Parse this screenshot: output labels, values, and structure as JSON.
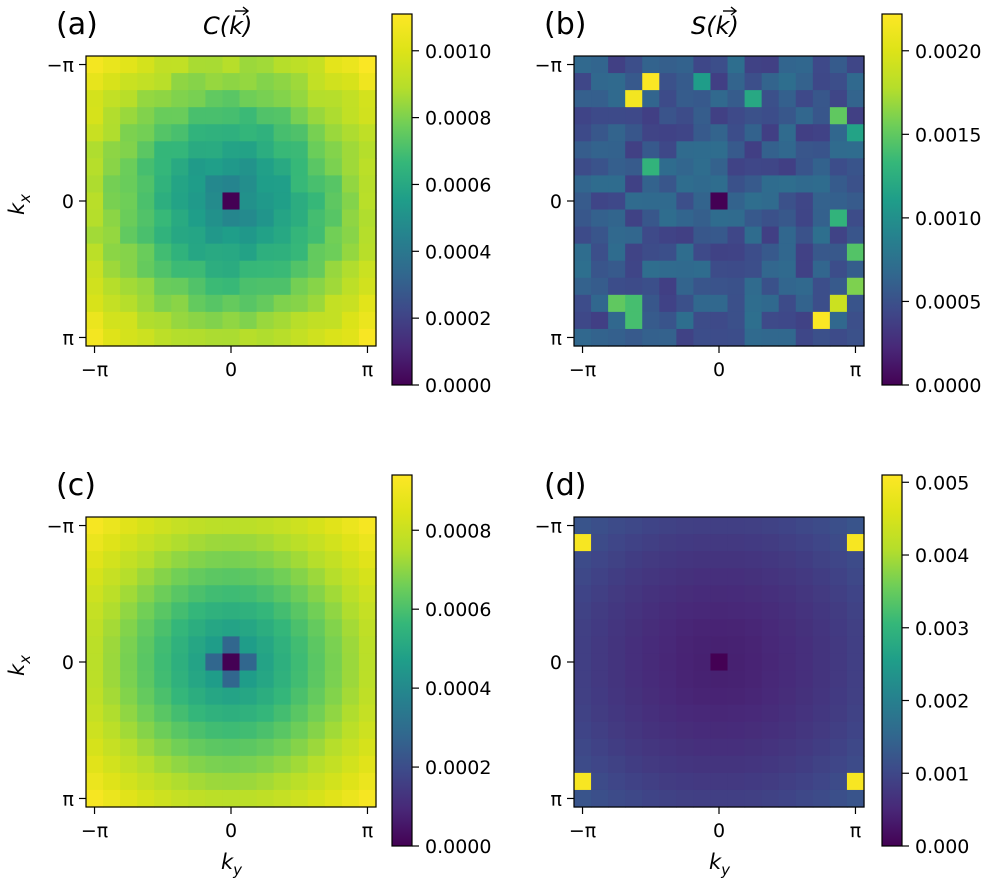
{
  "chart_data": [
    {
      "type": "heatmap",
      "panel_label": "(a)",
      "title": "C(k⃗)",
      "title_parts": [
        "C(",
        "k",
        ")"
      ],
      "xlabel": "",
      "ylabel": "k_x",
      "ylabel_parts": [
        "k",
        "x"
      ],
      "grid_size": 16,
      "pattern": "C_bowl",
      "center_value": 0.0,
      "ring1_value": 0.00048,
      "corner_value": 0.00108,
      "noise": 3e-05,
      "x_ticks": [
        "−π",
        "0",
        "π"
      ],
      "y_ticks": [
        "−π",
        "0",
        "π"
      ],
      "colorbar": {
        "min": 0.0,
        "max": 0.00111,
        "ticks": [
          0.0,
          0.0002,
          0.0004,
          0.0006,
          0.0008,
          0.001
        ],
        "tick_labels": [
          "0.0000",
          "0.0002",
          "0.0004",
          "0.0006",
          "0.0008",
          "0.0010"
        ]
      }
    },
    {
      "type": "heatmap",
      "panel_label": "(b)",
      "title": "S(k⃗)",
      "title_parts": [
        "S(",
        "k",
        ")"
      ],
      "xlabel": "",
      "ylabel": "",
      "grid_size": 16,
      "pattern": "S_noisy",
      "center_value": 0.0,
      "base_value": 0.00055,
      "hot_cells": [
        [
          1,
          4,
          0.0022
        ],
        [
          2,
          3,
          0.00215
        ],
        [
          15,
          14,
          0.0022
        ],
        [
          14,
          15,
          0.0019
        ],
        [
          3,
          15,
          0.0015
        ],
        [
          14,
          2,
          0.0015
        ],
        [
          1,
          7,
          0.0011
        ],
        [
          4,
          16,
          0.00115
        ],
        [
          11,
          16,
          0.00145
        ],
        [
          14,
          3,
          0.0014
        ],
        [
          6,
          4,
          0.0013
        ],
        [
          2,
          10,
          0.0012
        ],
        [
          9,
          15,
          0.0013
        ],
        [
          13,
          16,
          0.0016
        ],
        [
          15,
          3,
          0.0014
        ]
      ],
      "x_ticks": [
        "−π",
        "0",
        "π"
      ],
      "y_ticks": [
        "−π",
        "0",
        "π"
      ],
      "colorbar": {
        "min": 0.0,
        "max": 0.00222,
        "ticks": [
          0.0,
          0.0005,
          0.001,
          0.0015,
          0.002
        ],
        "tick_labels": [
          "0.0000",
          "0.0005",
          "0.0010",
          "0.0015",
          "0.0020"
        ]
      }
    },
    {
      "type": "heatmap",
      "panel_label": "(c)",
      "title": "",
      "xlabel": "k_y",
      "xlabel_parts": [
        "k",
        "y"
      ],
      "ylabel": "k_x",
      "ylabel_parts": [
        "k",
        "x"
      ],
      "grid_size": 16,
      "pattern": "C_smooth",
      "center_value": 0.0,
      "ring1_value": 0.00028,
      "corner_value": 0.00092,
      "x_ticks": [
        "−π",
        "0",
        "π"
      ],
      "y_ticks": [
        "−π",
        "0",
        "π"
      ],
      "colorbar": {
        "min": 0.0,
        "max": 0.00094,
        "ticks": [
          0.0,
          0.0002,
          0.0004,
          0.0006,
          0.0008
        ],
        "tick_labels": [
          "0.0000",
          "0.0002",
          "0.0004",
          "0.0006",
          "0.0008"
        ]
      }
    },
    {
      "type": "heatmap",
      "panel_label": "(d)",
      "title": "",
      "xlabel": "k_y",
      "xlabel_parts": [
        "k",
        "y"
      ],
      "ylabel": "",
      "grid_size": 16,
      "pattern": "S_corners",
      "center_value": 0.0,
      "center_ring_value": 0.0004,
      "edge_value": 0.0012,
      "corner_peak_value": 0.005,
      "x_ticks": [
        "−π",
        "0",
        "π"
      ],
      "y_ticks": [
        "−π",
        "0",
        "π"
      ],
      "colorbar": {
        "min": 0.0,
        "max": 0.0051,
        "ticks": [
          0.0,
          0.001,
          0.002,
          0.003,
          0.004,
          0.005
        ],
        "tick_labels": [
          "0.000",
          "0.001",
          "0.002",
          "0.003",
          "0.004",
          "0.005"
        ]
      }
    }
  ]
}
